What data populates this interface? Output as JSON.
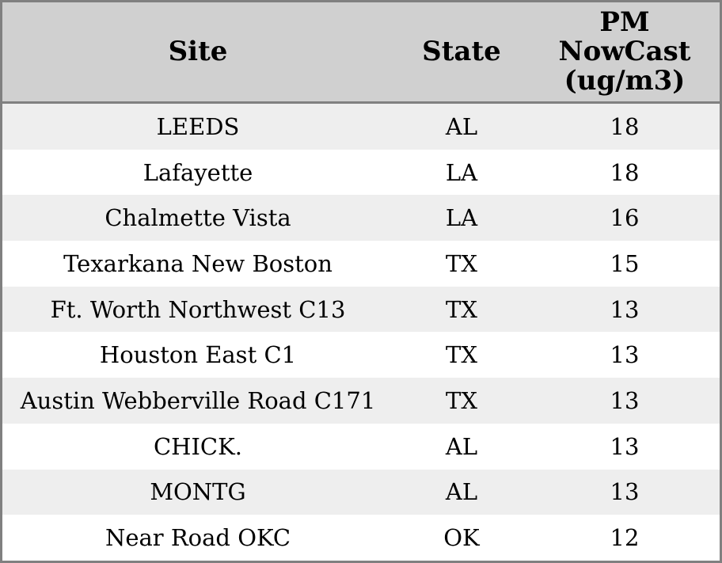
{
  "header": {
    "site": "Site",
    "state": "State",
    "pm": "PM\nNowCast\n(ug/m3)"
  },
  "colors": {
    "header_bg": "#d0d0d0",
    "row_alt_bg": "#eeeeee",
    "row_bg": "#ffffff",
    "border": "#808080",
    "text": "#000000"
  },
  "chart_data": {
    "type": "table",
    "columns": [
      "Site",
      "State",
      "PM NowCast (ug/m3)"
    ],
    "rows": [
      [
        "LEEDS",
        "AL",
        18
      ],
      [
        "Lafayette",
        "LA",
        18
      ],
      [
        "Chalmette Vista",
        "LA",
        16
      ],
      [
        "Texarkana New Boston",
        "TX",
        15
      ],
      [
        "Ft. Worth Northwest C13",
        "TX",
        13
      ],
      [
        "Houston East C1",
        "TX",
        13
      ],
      [
        "Austin Webberville Road C171",
        "TX",
        13
      ],
      [
        "CHICK.",
        "AL",
        13
      ],
      [
        "MONTG",
        "AL",
        13
      ],
      [
        "Near Road OKC",
        "OK",
        12
      ]
    ]
  }
}
